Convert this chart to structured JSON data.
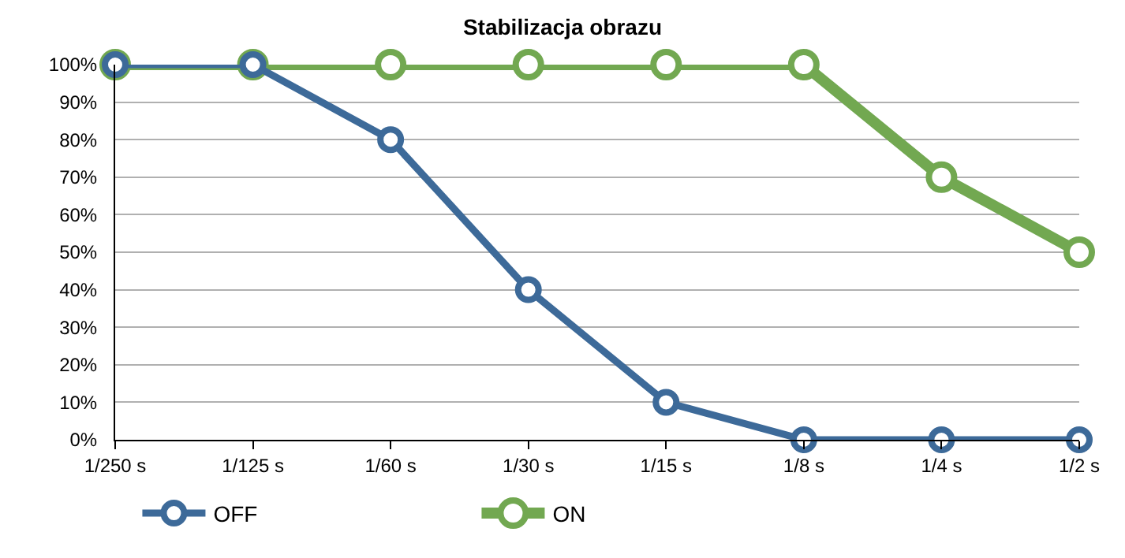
{
  "chart_data": {
    "type": "line",
    "title": "Stabilizacja obrazu",
    "categories": [
      "1/250 s",
      "1/125 s",
      "1/60 s",
      "1/30 s",
      "1/15 s",
      "1/8 s",
      "1/4 s",
      "1/2 s"
    ],
    "series": [
      {
        "name": "OFF",
        "color": "#3d6a99",
        "values": [
          100,
          100,
          80,
          40,
          10,
          0,
          0,
          0
        ]
      },
      {
        "name": "ON",
        "color": "#72a851",
        "values": [
          100,
          100,
          100,
          100,
          100,
          100,
          70,
          50
        ]
      }
    ],
    "ylim": [
      0,
      100
    ],
    "yticks": [
      {
        "value": 0,
        "label": "0%"
      },
      {
        "value": 10,
        "label": "10%"
      },
      {
        "value": 20,
        "label": "20%"
      },
      {
        "value": 30,
        "label": "30%"
      },
      {
        "value": 40,
        "label": "40%"
      },
      {
        "value": 50,
        "label": "50%"
      },
      {
        "value": 60,
        "label": "60%"
      },
      {
        "value": 70,
        "label": "70%"
      },
      {
        "value": 80,
        "label": "80%"
      },
      {
        "value": 90,
        "label": "90%"
      },
      {
        "value": 100,
        "label": "100%"
      }
    ],
    "grid": "y",
    "legend": "bottom",
    "marker": "circle",
    "line_style": "solid"
  }
}
